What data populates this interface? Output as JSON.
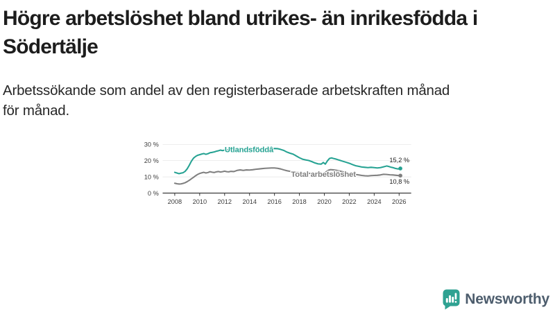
{
  "header": {
    "title_lines": [
      "Högre arbetslöshet bland utrikes- än inrikesfödda i",
      "Södertälje"
    ],
    "subtitle_lines": [
      "Arbetssökande som andel av den registerbaserade arbetskraften månad",
      "för månad."
    ]
  },
  "chart_data": {
    "type": "line",
    "title": "Högre arbetslöshet bland utrikes- än inrikesfödda i Södertälje",
    "subtitle": "Arbetssökande som andel av den registerbaserade arbetskraften månad för månad.",
    "unit": "%",
    "grid": true,
    "legend_position": "inline-labels",
    "x_range": [
      2008,
      2026.1
    ],
    "y_range": [
      0,
      30
    ],
    "x_axis": {
      "ticks": [
        2008,
        2010,
        2012,
        2014,
        2016,
        2018,
        2020,
        2022,
        2024,
        2026
      ]
    },
    "y_axis": {
      "ticks": [
        {
          "value": 0,
          "label": "0 %"
        },
        {
          "value": 10,
          "label": "10 %"
        },
        {
          "value": 20,
          "label": "20 %"
        },
        {
          "value": 30,
          "label": "30 %"
        }
      ]
    },
    "axis_color": "#3a3a3a",
    "gridline_color": "#e3e3e3",
    "series": [
      {
        "name": "Utlandsfödda",
        "label": "Utlandsföddâ",
        "color": "#25a292",
        "end_label": "15,2 %",
        "end_value": 15.2,
        "points": [
          [
            2008.0,
            12.8
          ],
          [
            2008.17,
            12.4
          ],
          [
            2008.33,
            12.0
          ],
          [
            2008.5,
            12.3
          ],
          [
            2008.67,
            12.6
          ],
          [
            2008.83,
            13.4
          ],
          [
            2009.0,
            15.0
          ],
          [
            2009.17,
            17.2
          ],
          [
            2009.33,
            19.6
          ],
          [
            2009.5,
            21.5
          ],
          [
            2009.67,
            22.6
          ],
          [
            2009.83,
            23.3
          ],
          [
            2010.0,
            23.7
          ],
          [
            2010.17,
            24.1
          ],
          [
            2010.33,
            24.4
          ],
          [
            2010.5,
            23.9
          ],
          [
            2010.67,
            24.3
          ],
          [
            2010.83,
            24.9
          ],
          [
            2011.0,
            25.1
          ],
          [
            2011.17,
            25.4
          ],
          [
            2011.33,
            25.8
          ],
          [
            2011.5,
            26.1
          ],
          [
            2011.67,
            26.5
          ],
          [
            2011.83,
            26.2
          ],
          [
            2012.0,
            26.5
          ],
          [
            2012.25,
            26.7
          ],
          [
            2012.5,
            26.4
          ],
          [
            2012.75,
            26.6
          ],
          [
            2013.0,
            26.5
          ],
          [
            2013.25,
            26.8
          ],
          [
            2013.5,
            26.6
          ],
          [
            2013.75,
            26.9
          ],
          [
            2014.0,
            27.0
          ],
          [
            2014.25,
            26.8
          ],
          [
            2014.5,
            27.1
          ],
          [
            2014.75,
            27.0
          ],
          [
            2015.0,
            27.2
          ],
          [
            2015.25,
            27.4
          ],
          [
            2015.5,
            27.2
          ],
          [
            2015.75,
            27.4
          ],
          [
            2016.0,
            27.5
          ],
          [
            2016.25,
            27.4
          ],
          [
            2016.5,
            26.9
          ],
          [
            2016.75,
            26.3
          ],
          [
            2017.0,
            25.3
          ],
          [
            2017.25,
            24.6
          ],
          [
            2017.5,
            24.0
          ],
          [
            2017.75,
            22.9
          ],
          [
            2018.0,
            21.8
          ],
          [
            2018.25,
            20.9
          ],
          [
            2018.5,
            20.5
          ],
          [
            2018.75,
            20.1
          ],
          [
            2019.0,
            19.4
          ],
          [
            2019.25,
            18.6
          ],
          [
            2019.5,
            18.0
          ],
          [
            2019.75,
            17.9
          ],
          [
            2019.92,
            18.9
          ],
          [
            2020.08,
            17.9
          ],
          [
            2020.25,
            19.9
          ],
          [
            2020.42,
            21.4
          ],
          [
            2020.58,
            21.7
          ],
          [
            2020.75,
            21.3
          ],
          [
            2020.92,
            21.0
          ],
          [
            2021.08,
            20.6
          ],
          [
            2021.25,
            20.2
          ],
          [
            2021.5,
            19.6
          ],
          [
            2021.75,
            19.0
          ],
          [
            2022.0,
            18.4
          ],
          [
            2022.25,
            17.6
          ],
          [
            2022.5,
            16.9
          ],
          [
            2022.75,
            16.5
          ],
          [
            2023.0,
            16.1
          ],
          [
            2023.25,
            15.9
          ],
          [
            2023.5,
            15.7
          ],
          [
            2023.75,
            15.9
          ],
          [
            2024.0,
            15.7
          ],
          [
            2024.25,
            15.5
          ],
          [
            2024.5,
            15.7
          ],
          [
            2024.75,
            16.2
          ],
          [
            2025.0,
            16.7
          ],
          [
            2025.17,
            16.4
          ],
          [
            2025.33,
            16.0
          ],
          [
            2025.5,
            15.7
          ],
          [
            2025.67,
            15.3
          ],
          [
            2025.83,
            15.0
          ],
          [
            2026.0,
            14.9
          ],
          [
            2026.1,
            15.2
          ]
        ]
      },
      {
        "name": "Total arbetslöshet",
        "label": "Total arbetslöshet",
        "color": "#7f7f7f",
        "end_label": "10,8 %",
        "end_value": 10.8,
        "points": [
          [
            2008.0,
            6.1
          ],
          [
            2008.17,
            5.8
          ],
          [
            2008.33,
            5.6
          ],
          [
            2008.5,
            5.7
          ],
          [
            2008.67,
            6.0
          ],
          [
            2008.83,
            6.4
          ],
          [
            2009.0,
            7.1
          ],
          [
            2009.17,
            7.9
          ],
          [
            2009.33,
            8.8
          ],
          [
            2009.5,
            9.7
          ],
          [
            2009.67,
            10.7
          ],
          [
            2009.83,
            11.5
          ],
          [
            2010.0,
            12.1
          ],
          [
            2010.17,
            12.5
          ],
          [
            2010.33,
            12.8
          ],
          [
            2010.5,
            12.4
          ],
          [
            2010.67,
            12.7
          ],
          [
            2010.83,
            13.2
          ],
          [
            2011.0,
            12.9
          ],
          [
            2011.17,
            12.7
          ],
          [
            2011.33,
            13.1
          ],
          [
            2011.5,
            13.3
          ],
          [
            2011.67,
            13.0
          ],
          [
            2011.83,
            13.2
          ],
          [
            2012.0,
            13.5
          ],
          [
            2012.17,
            13.2
          ],
          [
            2012.33,
            13.1
          ],
          [
            2012.5,
            13.4
          ],
          [
            2012.75,
            13.3
          ],
          [
            2013.0,
            14.0
          ],
          [
            2013.25,
            14.3
          ],
          [
            2013.5,
            14.0
          ],
          [
            2013.75,
            14.3
          ],
          [
            2014.0,
            14.2
          ],
          [
            2014.25,
            14.4
          ],
          [
            2014.5,
            14.7
          ],
          [
            2014.75,
            14.9
          ],
          [
            2015.0,
            15.1
          ],
          [
            2015.25,
            15.3
          ],
          [
            2015.5,
            15.4
          ],
          [
            2015.75,
            15.5
          ],
          [
            2016.0,
            15.5
          ],
          [
            2016.25,
            15.3
          ],
          [
            2016.5,
            14.9
          ],
          [
            2016.75,
            14.3
          ],
          [
            2017.0,
            13.8
          ],
          [
            2017.25,
            13.4
          ],
          [
            2017.5,
            13.2
          ],
          [
            2017.75,
            12.9
          ],
          [
            2018.0,
            12.6
          ],
          [
            2018.25,
            12.4
          ],
          [
            2018.5,
            12.3
          ],
          [
            2018.75,
            12.2
          ],
          [
            2019.0,
            12.1
          ],
          [
            2019.25,
            12.0
          ],
          [
            2019.5,
            11.9
          ],
          [
            2019.75,
            12.0
          ],
          [
            2020.0,
            12.3
          ],
          [
            2020.17,
            13.3
          ],
          [
            2020.33,
            14.1
          ],
          [
            2020.5,
            14.5
          ],
          [
            2020.75,
            14.3
          ],
          [
            2021.0,
            14.0
          ],
          [
            2021.25,
            13.6
          ],
          [
            2021.5,
            13.1
          ],
          [
            2021.75,
            12.6
          ],
          [
            2022.0,
            12.1
          ],
          [
            2022.25,
            11.8
          ],
          [
            2022.5,
            11.5
          ],
          [
            2022.75,
            11.2
          ],
          [
            2023.0,
            10.9
          ],
          [
            2023.25,
            10.7
          ],
          [
            2023.5,
            10.6
          ],
          [
            2023.75,
            10.8
          ],
          [
            2024.0,
            10.9
          ],
          [
            2024.25,
            11.0
          ],
          [
            2024.5,
            11.2
          ],
          [
            2024.75,
            11.6
          ],
          [
            2025.0,
            11.5
          ],
          [
            2025.25,
            11.3
          ],
          [
            2025.5,
            11.2
          ],
          [
            2025.75,
            11.0
          ],
          [
            2026.0,
            10.8
          ],
          [
            2026.1,
            10.8
          ]
        ]
      }
    ]
  },
  "footer": {
    "brand": "Newsworthy",
    "brand_color": "#2fa292"
  }
}
